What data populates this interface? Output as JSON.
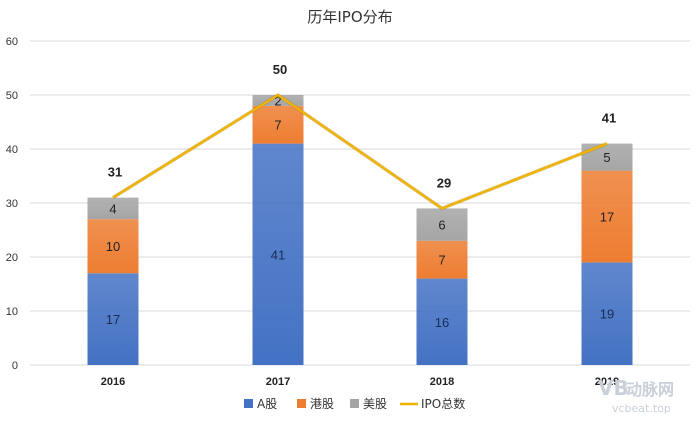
{
  "chart_data": {
    "type": "bar",
    "stacked": true,
    "title": "历年IPO分布",
    "categories": [
      "2016",
      "2017",
      "2018",
      "2019"
    ],
    "series": [
      {
        "name": "A股",
        "values": [
          17,
          41,
          16,
          19
        ],
        "color": "#4472c4"
      },
      {
        "name": "港股",
        "values": [
          10,
          7,
          7,
          17
        ],
        "color": "#ed7d31"
      },
      {
        "name": "美股",
        "values": [
          4,
          2,
          6,
          5
        ],
        "color": "#a5a5a5"
      }
    ],
    "line": {
      "name": "IPO总数",
      "values": [
        31,
        50,
        29,
        41
      ],
      "color": "#f0b400"
    },
    "yticks": [
      0,
      10,
      20,
      30,
      40,
      50,
      60
    ],
    "ylim": [
      0,
      60
    ],
    "grid": true,
    "legend_position": "bottom"
  },
  "watermark": {
    "logo": "VB",
    "brand": "动脉网",
    "site": "vcbeat.top"
  }
}
